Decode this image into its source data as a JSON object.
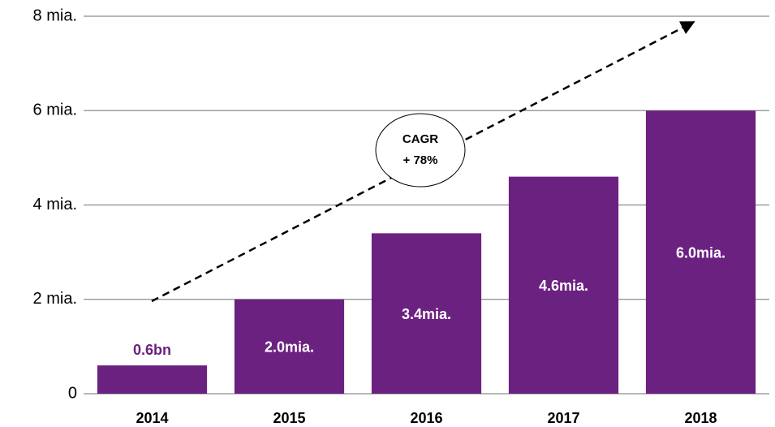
{
  "chart_data": {
    "type": "bar",
    "categories": [
      "2014",
      "2015",
      "2016",
      "2017",
      "2018"
    ],
    "values": [
      0.6,
      2.0,
      3.4,
      4.6,
      6.0
    ],
    "value_labels": [
      "0.6bn",
      "2.0mia.",
      "3.4mia.",
      "4.6mia.",
      "6.0mia."
    ],
    "color": "#6b2180",
    "ylim": [
      0,
      8
    ],
    "yticks": [
      0,
      {
        "value": 2,
        "label": "2 mia."
      },
      {
        "value": 4,
        "label": "4 mia."
      },
      {
        "value": 6,
        "label": "6 mia."
      },
      {
        "value": 8,
        "label": "8 mia."
      }
    ],
    "grid": true,
    "annotation": [
      "CAGR",
      "+ 78%"
    ]
  }
}
